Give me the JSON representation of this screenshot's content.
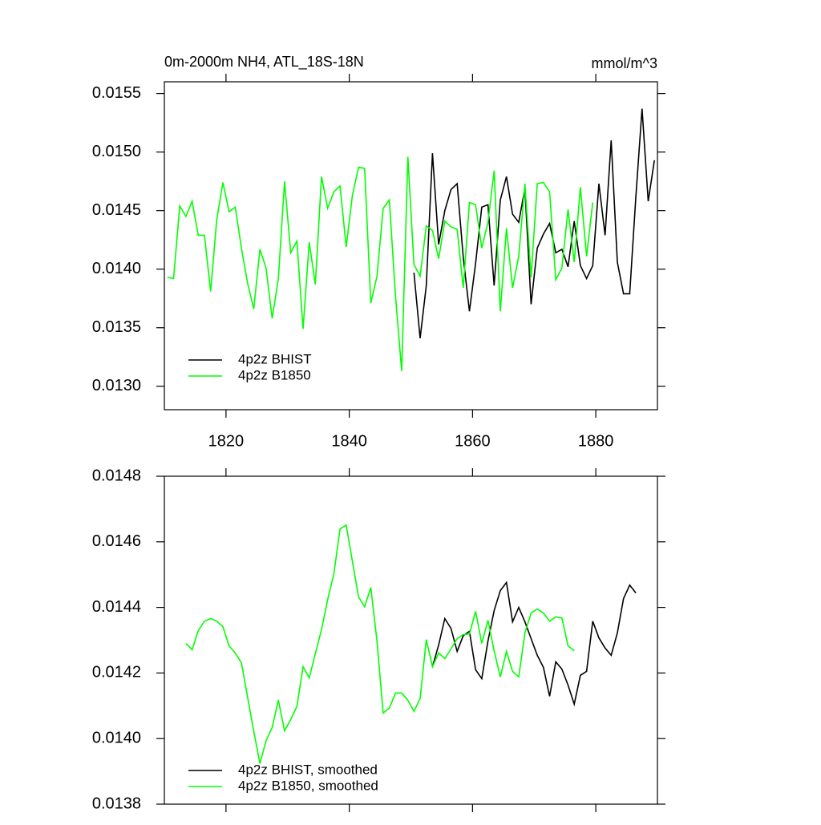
{
  "chart_data": [
    {
      "type": "line",
      "title": "0m-2000m NH4, ATL_18S-18N",
      "units": "mmol/m^3",
      "xlim": [
        1810,
        1890
      ],
      "xticks": [
        1820,
        1840,
        1860,
        1880
      ],
      "xtick_labels": true,
      "ylim": [
        0.0128,
        0.0156
      ],
      "yticks": [
        {
          "value": 0.013,
          "label": "0.0130"
        },
        0.0135,
        {
          "value": 0.014,
          "label": "0.0140"
        },
        0.0145,
        {
          "value": 0.015,
          "label": "0.0150"
        },
        0.0155
      ],
      "legend": "lower left",
      "series": [
        {
          "name": "4p2z BHIST",
          "color": "#000000",
          "x": [
            1850.5,
            1851.5,
            1852.5,
            1853.5,
            1854.5,
            1855.5,
            1856.5,
            1857.5,
            1858.5,
            1859.5,
            1860.5,
            1861.5,
            1862.5,
            1863.5,
            1864.5,
            1865.5,
            1866.5,
            1867.5,
            1868.5,
            1869.5,
            1870.5,
            1871.5,
            1872.5,
            1873.5,
            1874.5,
            1875.5,
            1876.5,
            1877.5,
            1878.5,
            1879.5,
            1880.5,
            1881.5,
            1882.5,
            1883.5,
            1884.5,
            1885.5,
            1886.5,
            1887.5,
            1888.5,
            1889.5
          ],
          "values": [
            0.01397,
            0.01341,
            0.01386,
            0.01499,
            0.01421,
            0.0145,
            0.01468,
            0.01473,
            0.0141,
            0.01364,
            0.01405,
            0.01453,
            0.01455,
            0.01386,
            0.01459,
            0.01479,
            0.01447,
            0.0144,
            0.01469,
            0.0137,
            0.01418,
            0.0143,
            0.01439,
            0.01414,
            0.01417,
            0.01402,
            0.01441,
            0.01403,
            0.01392,
            0.01403,
            0.01473,
            0.01429,
            0.0151,
            0.01406,
            0.01379,
            0.01379,
            0.01462,
            0.01537,
            0.01458,
            0.01493
          ]
        },
        {
          "name": "4p2z B1850",
          "color": "#00ff00",
          "x": [
            1810.5,
            1811.5,
            1812.5,
            1813.5,
            1814.5,
            1815.5,
            1816.5,
            1817.5,
            1818.5,
            1819.5,
            1820.5,
            1821.5,
            1822.5,
            1823.5,
            1824.5,
            1825.5,
            1826.5,
            1827.5,
            1828.5,
            1829.5,
            1830.5,
            1831.5,
            1832.5,
            1833.5,
            1834.5,
            1835.5,
            1836.5,
            1837.5,
            1838.5,
            1839.5,
            1840.5,
            1841.5,
            1842.5,
            1843.5,
            1844.5,
            1845.5,
            1846.5,
            1847.5,
            1848.5,
            1849.5,
            1850.5,
            1851.5,
            1852.5,
            1853.5,
            1854.5,
            1855.5,
            1856.5,
            1857.5,
            1858.5,
            1859.5,
            1860.5,
            1861.5,
            1862.5,
            1863.5,
            1864.5,
            1865.5,
            1866.5,
            1867.5,
            1868.5,
            1869.5,
            1870.5,
            1871.5,
            1872.5,
            1873.5,
            1874.5,
            1875.5,
            1876.5,
            1877.5,
            1878.5,
            1879.5
          ],
          "values": [
            0.01393,
            0.01392,
            0.01454,
            0.01445,
            0.01458,
            0.01429,
            0.01429,
            0.01381,
            0.01442,
            0.01474,
            0.01449,
            0.01453,
            0.01418,
            0.01388,
            0.01366,
            0.01417,
            0.01401,
            0.01358,
            0.01392,
            0.01475,
            0.01414,
            0.01424,
            0.01349,
            0.01423,
            0.01387,
            0.01479,
            0.01452,
            0.01466,
            0.01471,
            0.01419,
            0.01463,
            0.01487,
            0.01486,
            0.01371,
            0.01394,
            0.01452,
            0.01459,
            0.01377,
            0.01313,
            0.01496,
            0.01404,
            0.01394,
            0.01437,
            0.01433,
            0.01409,
            0.01441,
            0.01436,
            0.01434,
            0.01384,
            0.01457,
            0.01455,
            0.01418,
            0.0144,
            0.01484,
            0.01364,
            0.01435,
            0.01384,
            0.01411,
            0.01473,
            0.01393,
            0.01473,
            0.01474,
            0.01466,
            0.01391,
            0.01401,
            0.01451,
            0.01406,
            0.0147,
            0.01411,
            0.01457
          ]
        }
      ]
    },
    {
      "type": "line",
      "xlim": [
        1810,
        1890
      ],
      "xticks": [
        1820,
        1840,
        1860,
        1880
      ],
      "xtick_labels": false,
      "ylim": [
        0.0138,
        0.0148
      ],
      "yticks": [
        0.0138,
        {
          "value": 0.014,
          "label": "0.0140"
        },
        0.0142,
        0.0144,
        0.0146,
        0.0148
      ],
      "legend": "lower left",
      "series": [
        {
          "name": "4p2z BHIST, smoothed",
          "color": "#000000",
          "x": [
            1853.5,
            1854.5,
            1855.5,
            1856.5,
            1857.5,
            1858.5,
            1859.5,
            1860.5,
            1861.5,
            1862.5,
            1863.5,
            1864.5,
            1865.5,
            1866.5,
            1867.5,
            1868.5,
            1869.5,
            1870.5,
            1871.5,
            1872.5,
            1873.5,
            1874.5,
            1875.5,
            1876.5,
            1877.5,
            1878.5,
            1879.5,
            1880.5,
            1881.5,
            1882.5,
            1883.5,
            1884.5,
            1885.5,
            1886.5
          ],
          "values": [
            0.014219,
            0.014285,
            0.014366,
            0.014336,
            0.014266,
            0.014314,
            0.014327,
            0.01421,
            0.014183,
            0.014297,
            0.01439,
            0.014451,
            0.014476,
            0.014356,
            0.0144,
            0.014356,
            0.014305,
            0.014254,
            0.014217,
            0.014129,
            0.014234,
            0.014212,
            0.014163,
            0.014105,
            0.014193,
            0.014205,
            0.014358,
            0.014307,
            0.014276,
            0.014254,
            0.014322,
            0.014427,
            0.014468,
            0.014444
          ]
        },
        {
          "name": "4p2z B1850, smoothed",
          "color": "#00ff00",
          "x": [
            1813.5,
            1814.5,
            1815.5,
            1816.5,
            1817.5,
            1818.5,
            1819.5,
            1820.5,
            1821.5,
            1822.5,
            1823.5,
            1824.5,
            1825.5,
            1826.5,
            1827.5,
            1828.5,
            1829.5,
            1830.5,
            1831.5,
            1832.5,
            1833.5,
            1834.5,
            1835.5,
            1836.5,
            1837.5,
            1838.5,
            1839.5,
            1840.5,
            1841.5,
            1842.5,
            1843.5,
            1844.5,
            1845.5,
            1846.5,
            1847.5,
            1848.5,
            1849.5,
            1850.5,
            1851.5,
            1852.5,
            1853.5,
            1854.5,
            1855.5,
            1856.5,
            1857.5,
            1858.5,
            1859.5,
            1860.5,
            1861.5,
            1862.5,
            1863.5,
            1864.5,
            1865.5,
            1866.5,
            1867.5,
            1868.5,
            1869.5,
            1870.5,
            1871.5,
            1872.5,
            1873.5,
            1874.5,
            1875.5,
            1876.5
          ],
          "values": [
            0.01429,
            0.014271,
            0.014329,
            0.014358,
            0.014366,
            0.014358,
            0.014341,
            0.014283,
            0.014261,
            0.014231,
            0.014127,
            0.014022,
            0.013924,
            0.013993,
            0.014034,
            0.014117,
            0.014024,
            0.014058,
            0.014098,
            0.014219,
            0.014185,
            0.014259,
            0.014332,
            0.014424,
            0.014502,
            0.014639,
            0.014651,
            0.014541,
            0.014432,
            0.014402,
            0.014461,
            0.014297,
            0.014078,
            0.014093,
            0.014139,
            0.014139,
            0.014117,
            0.014083,
            0.014122,
            0.014302,
            0.014219,
            0.014261,
            0.014244,
            0.014273,
            0.014305,
            0.014317,
            0.014319,
            0.014388,
            0.01429,
            0.014361,
            0.014268,
            0.014188,
            0.014266,
            0.014205,
            0.014188,
            0.014322,
            0.014383,
            0.014395,
            0.014383,
            0.014358,
            0.014371,
            0.014368,
            0.014283,
            0.014268
          ]
        }
      ]
    }
  ]
}
